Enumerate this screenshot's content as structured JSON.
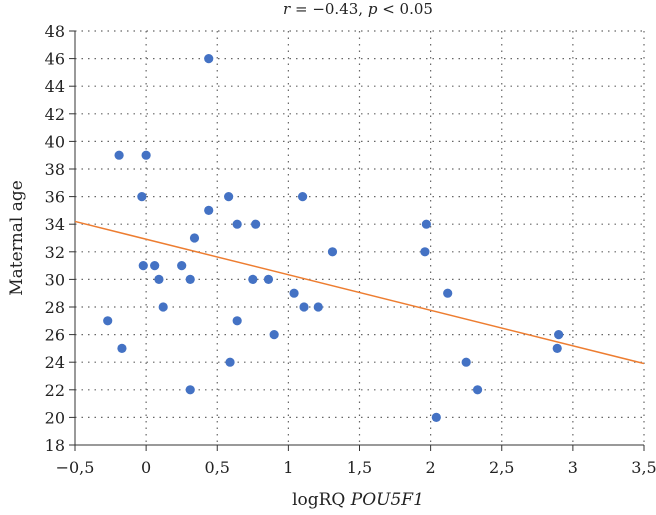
{
  "chart_data": {
    "type": "scatter",
    "title": {
      "r_symbol": "r",
      "r_value": " = −0.43, ",
      "p_symbol": "p",
      "p_value": " < 0.05"
    },
    "xlabel": {
      "prefix": "logRQ ",
      "gene": "POU5F1"
    },
    "ylabel": "Maternal age",
    "xlim": [
      -0.5,
      3.5
    ],
    "ylim": [
      18,
      48
    ],
    "x_ticks": [
      -0.5,
      0,
      0.5,
      1,
      1.5,
      2,
      2.5,
      3,
      3.5
    ],
    "x_tick_labels": [
      "−0,5",
      "0",
      "0,5",
      "1",
      "1,5",
      "2",
      "2,5",
      "3",
      "3,5"
    ],
    "y_ticks": [
      18,
      20,
      22,
      24,
      26,
      28,
      30,
      32,
      34,
      36,
      38,
      40,
      42,
      44,
      46,
      48
    ],
    "y_tick_labels": [
      "18",
      "20",
      "22",
      "24",
      "26",
      "28",
      "30",
      "32",
      "34",
      "36",
      "38",
      "40",
      "42",
      "44",
      "46",
      "48"
    ],
    "grid": true,
    "point_color": "#4472c4",
    "line_color": "#ed7d31",
    "points": [
      {
        "x": -0.27,
        "y": 27
      },
      {
        "x": -0.19,
        "y": 39
      },
      {
        "x": -0.17,
        "y": 25
      },
      {
        "x": -0.03,
        "y": 36
      },
      {
        "x": -0.02,
        "y": 31
      },
      {
        "x": 0.0,
        "y": 39
      },
      {
        "x": 0.06,
        "y": 31
      },
      {
        "x": 0.09,
        "y": 30
      },
      {
        "x": 0.12,
        "y": 28
      },
      {
        "x": 0.25,
        "y": 31
      },
      {
        "x": 0.31,
        "y": 30
      },
      {
        "x": 0.31,
        "y": 22
      },
      {
        "x": 0.34,
        "y": 33
      },
      {
        "x": 0.44,
        "y": 46
      },
      {
        "x": 0.44,
        "y": 35
      },
      {
        "x": 0.58,
        "y": 36
      },
      {
        "x": 0.59,
        "y": 24
      },
      {
        "x": 0.64,
        "y": 34
      },
      {
        "x": 0.64,
        "y": 27
      },
      {
        "x": 0.75,
        "y": 30
      },
      {
        "x": 0.77,
        "y": 34
      },
      {
        "x": 0.86,
        "y": 30
      },
      {
        "x": 0.9,
        "y": 26
      },
      {
        "x": 1.04,
        "y": 29
      },
      {
        "x": 1.1,
        "y": 36
      },
      {
        "x": 1.11,
        "y": 28
      },
      {
        "x": 1.21,
        "y": 28
      },
      {
        "x": 1.31,
        "y": 32
      },
      {
        "x": 1.96,
        "y": 32
      },
      {
        "x": 1.97,
        "y": 34
      },
      {
        "x": 2.04,
        "y": 20
      },
      {
        "x": 2.12,
        "y": 29
      },
      {
        "x": 2.25,
        "y": 24
      },
      {
        "x": 2.33,
        "y": 22
      },
      {
        "x": 2.89,
        "y": 25
      },
      {
        "x": 2.9,
        "y": 26
      }
    ],
    "trendline": {
      "x": [
        -0.5,
        3.5
      ],
      "y": [
        34.2,
        23.9
      ]
    }
  }
}
